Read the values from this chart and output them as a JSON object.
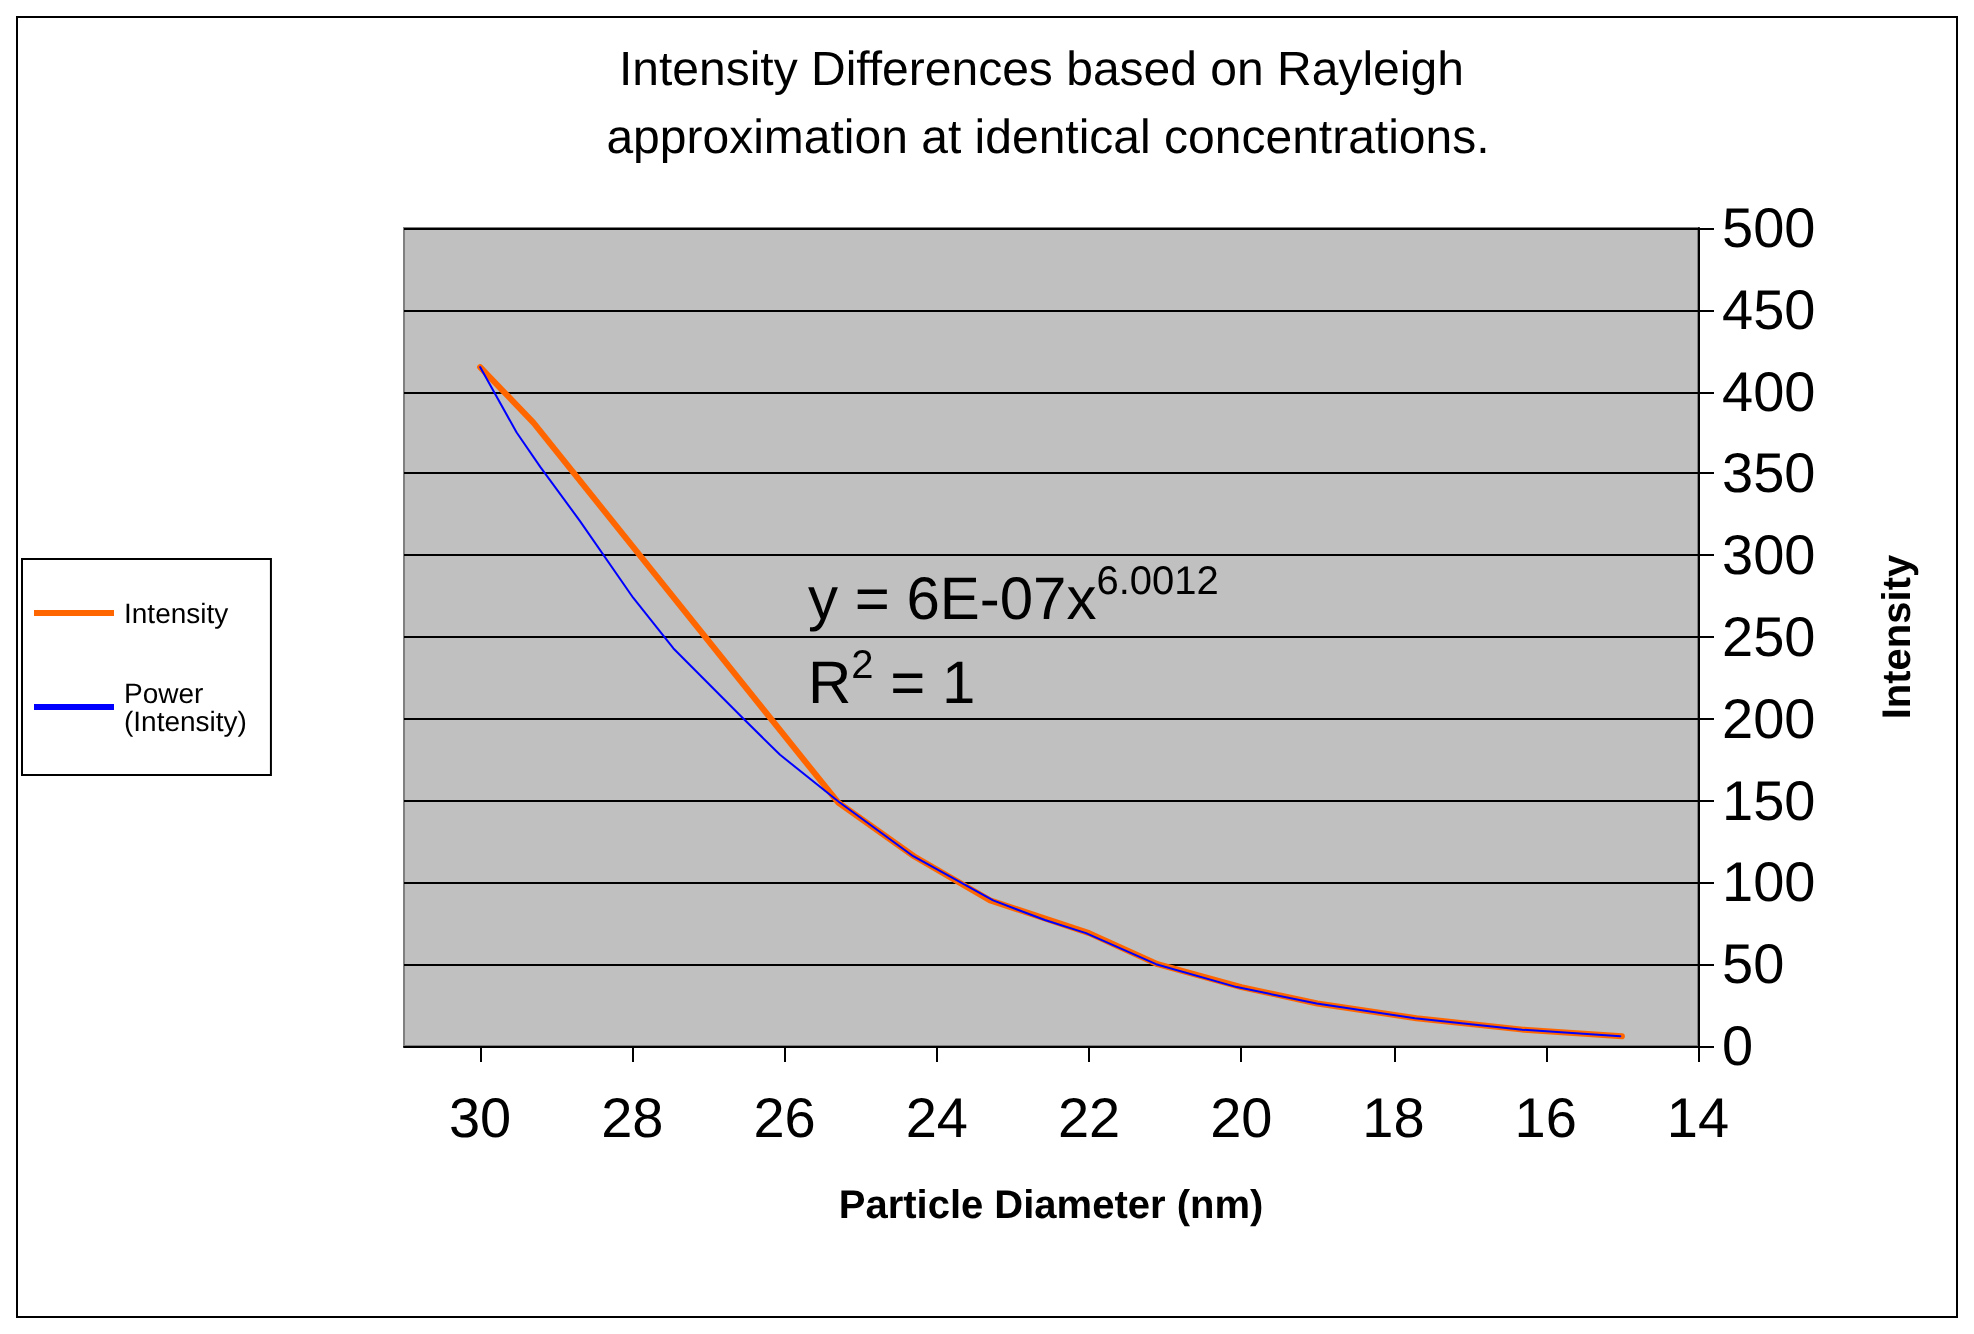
{
  "chart_data": {
    "type": "line",
    "title": "Intensity Differences based on Rayleigh approximation at identical concentrations.",
    "xlabel": "Particle Diameter (nm)",
    "ylabel": "Intensity",
    "xlim": [
      31,
      14
    ],
    "xticks": [
      30,
      28,
      26,
      24,
      22,
      20,
      18,
      16,
      14
    ],
    "ylim": [
      0,
      500
    ],
    "yticks": [
      0,
      50,
      100,
      150,
      200,
      250,
      300,
      350,
      400,
      450,
      500
    ],
    "grid": "y",
    "legend": "left",
    "marker": "none",
    "line_style": "solid",
    "annotations": [
      "y = 6E-07x$^{6.0012}$",
      "R$^{2}$ = 1"
    ],
    "series": [
      {
        "name": "Intensity",
        "color": "#ff6600",
        "x": [
          30,
          29.3,
          25.3,
          24.3,
          23.3,
          22,
          21.1,
          20,
          19,
          17.7,
          16.3,
          15
        ],
        "values": [
          415,
          381,
          149,
          116,
          89,
          69,
          50,
          36,
          26,
          17,
          10,
          6
        ]
      },
      {
        "name": "Power (Intensity)",
        "color": "#0000ff",
        "x": [
          30,
          29.52,
          29.21,
          28.69,
          27.99,
          27.46,
          26.54,
          26.06,
          25.28,
          24.31,
          23.26,
          22.58,
          22.04,
          21.12,
          20.06,
          19.01,
          17.72,
          16.31,
          15.02
        ],
        "values": [
          415,
          375,
          354,
          321,
          274,
          243,
          200,
          178,
          149,
          116,
          89,
          77,
          69,
          50,
          36,
          26,
          17,
          10,
          6
        ]
      }
    ]
  }
}
